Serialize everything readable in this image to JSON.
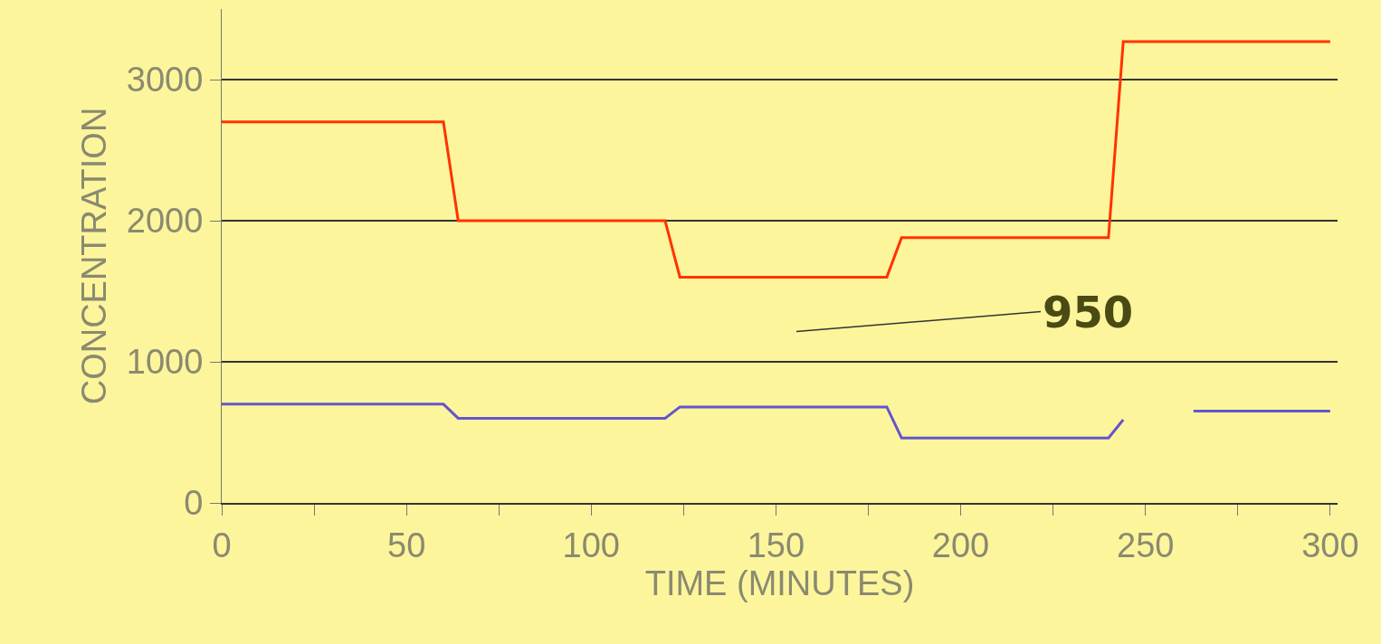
{
  "chart_data": {
    "type": "line",
    "xlabel": "TIME (MINUTES)",
    "ylabel": "CONCENTRATION",
    "series": [
      {
        "color": "#ff3300",
        "x": [
          0,
          60,
          64,
          120,
          124,
          180,
          184,
          240,
          244,
          300
        ],
        "values": [
          2700,
          2700,
          2000,
          2000,
          1600,
          1600,
          1880,
          1880,
          3270,
          3270
        ]
      },
      {
        "color": "#6655cc",
        "x": [
          0,
          60,
          64,
          120,
          124,
          180,
          184,
          240,
          244,
          254,
          263,
          300
        ],
        "values": [
          700,
          700,
          600,
          600,
          680,
          680,
          460,
          460,
          590,
          null,
          650,
          650
        ]
      }
    ],
    "xlim": [
      0,
      302
    ],
    "ylim": [
      0,
      3500
    ],
    "xticks": [
      0,
      {
        "value": 25,
        "label": null
      },
      50,
      {
        "value": 75,
        "label": null
      },
      100,
      {
        "value": 125,
        "label": null
      },
      150,
      {
        "value": 175,
        "label": null
      },
      200,
      {
        "value": 225,
        "label": null
      },
      250,
      {
        "value": 275,
        "label": null
      },
      300
    ],
    "yticks": [
      0,
      1000,
      2000,
      3000
    ],
    "grid": "y",
    "line_style": "solid",
    "marker": "none",
    "annotations": [
      "950"
    ]
  }
}
